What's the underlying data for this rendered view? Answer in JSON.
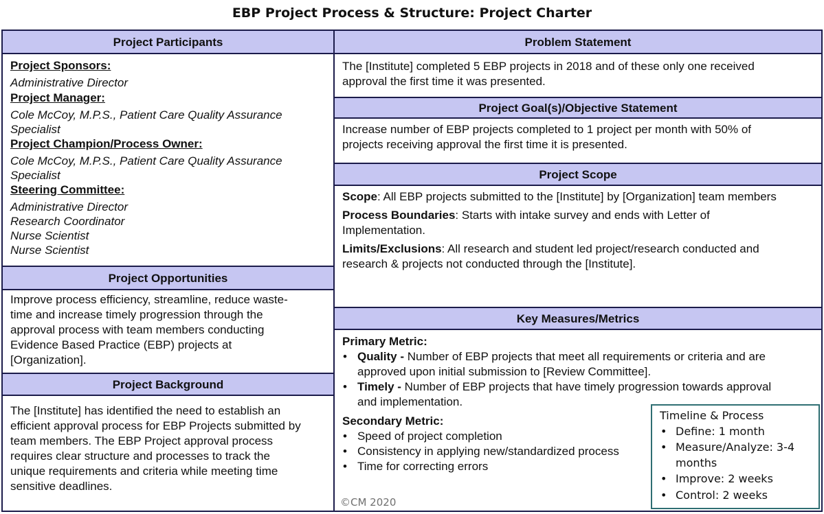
{
  "title": "EBP Project Process & Structure: Project Charter",
  "left": {
    "participants": {
      "header": "Project Participants",
      "sponsors_label": "Project Sponsors:",
      "sponsors": [
        "Administrative Director"
      ],
      "manager_label": "Project Manager:",
      "manager_lines": [
        "Cole McCoy, M.P.S., Patient Care Quality Assurance",
        "Specialist"
      ],
      "champion_label": "Project Champion/Process Owner:",
      "champion_lines": [
        "Cole McCoy, M.P.S., Patient Care Quality Assurance",
        "Specialist"
      ],
      "steering_label": "Steering Committee:",
      "steering": [
        "Administrative Director",
        "Research Coordinator",
        "Nurse Scientist",
        "Nurse Scientist"
      ]
    },
    "opportunities": {
      "header": "Project Opportunities",
      "lines": [
        "Improve process efficiency, streamline, reduce waste-",
        "time and increase timely progression through the",
        "approval process with team members conducting",
        "Evidence Based Practice (EBP) projects at",
        "[Organization]."
      ]
    },
    "background": {
      "header": "Project Background",
      "lines": [
        "The [Institute] has identified the need to establish an",
        "efficient approval process for EBP Projects submitted by",
        "team members. The EBP Project approval process",
        "requires clear structure and processes to track the",
        "unique requirements and criteria while meeting time",
        "sensitive deadlines."
      ]
    }
  },
  "right": {
    "problem": {
      "header": "Problem Statement",
      "lines": [
        "The [Institute] completed 5 EBP projects in 2018 and of these only one received",
        "approval the first time it was presented."
      ]
    },
    "goal": {
      "header": "Project Goal(s)/Objective Statement",
      "lines": [
        "Increase number of EBP projects completed to 1 project per month with 50% of",
        "projects receiving approval the first time it is presented."
      ]
    },
    "scope": {
      "header": "Project Scope",
      "scope_label": "Scope",
      "scope_text": ": All EBP projects submitted to the [Institute]  by [Organization] team members",
      "boundaries_label": "Process Boundaries",
      "boundaries_text": ": Starts with intake survey and ends with Letter of",
      "boundaries_text2": "Implementation.",
      "limits_label": "Limits/Exclusions",
      "limits_text": ": All research and student led project/research conducted and",
      "limits_text2": "research & projects not conducted through the [Institute]."
    },
    "metrics": {
      "header": "Key Measures/Metrics",
      "primary_label": "Primary Metric:",
      "primary": [
        {
          "term": "Quality - ",
          "line1": "Number of EBP projects that meet all requirements or criteria and are",
          "line2": "approved upon initial submission to [Review Committee]."
        },
        {
          "term": "Timely - ",
          "line1": "Number of EBP projects that have timely progression towards approval",
          "line2": "and implementation."
        }
      ],
      "secondary_label": "Secondary Metric:",
      "secondary": [
        "Speed of project completion",
        "Consistency in applying new/standardized process",
        "Time for correcting errors"
      ]
    }
  },
  "timeline": {
    "title": "Timeline & Process",
    "items": [
      "Define: 1 month",
      "Measure/Analyze: 3-4",
      "Improve: 2 weeks",
      "Control: 2 weeks"
    ],
    "item2_cont": "months"
  },
  "copyright": "©CM 2020"
}
